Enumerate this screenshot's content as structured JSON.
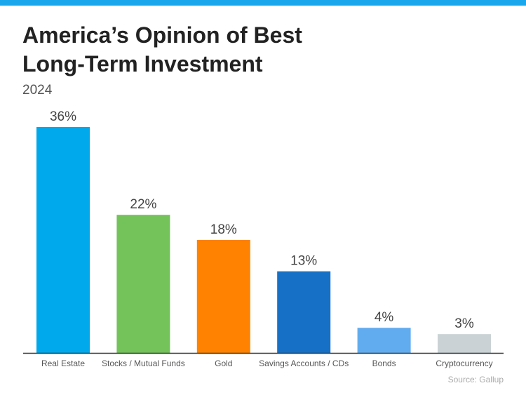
{
  "header": {
    "title_line1": "America’s Opinion of Best",
    "title_line2": "Long-Term Investment",
    "subtitle": "2024",
    "accent_color": "#1AA7EC"
  },
  "source": "Source: Gallup",
  "chart_data": {
    "type": "bar",
    "title": "America’s Opinion of Best Long-Term Investment",
    "subtitle": "2024",
    "categories": [
      "Real Estate",
      "Stocks / Mutual Funds",
      "Gold",
      "Savings Accounts / CDs",
      "Bonds",
      "Cryptocurrency"
    ],
    "values": [
      36,
      22,
      18,
      13,
      4,
      3
    ],
    "value_labels": [
      "36%",
      "22%",
      "18%",
      "13%",
      "4%",
      "3%"
    ],
    "colors": [
      "#00A9EC",
      "#73C25A",
      "#FF8200",
      "#1670C6",
      "#61ACEE",
      "#CBD2D6"
    ],
    "unit": "%",
    "ylim": [
      0,
      36
    ],
    "grid": false,
    "legend": "none"
  }
}
